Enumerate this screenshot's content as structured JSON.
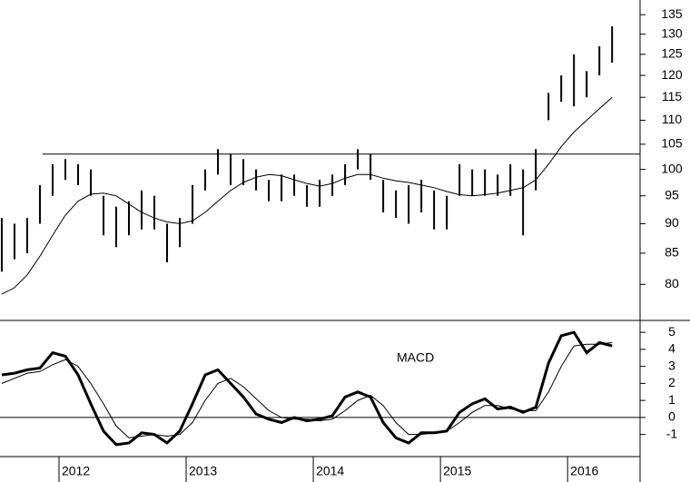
{
  "chart_data": [
    {
      "type": "hilo",
      "x": [
        2011.55,
        2011.65,
        2011.75,
        2011.85,
        2011.95,
        2012.05,
        2012.15,
        2012.25,
        2012.35,
        2012.45,
        2012.55,
        2012.65,
        2012.75,
        2012.85,
        2012.95,
        2013.05,
        2013.15,
        2013.25,
        2013.35,
        2013.45,
        2013.55,
        2013.65,
        2013.75,
        2013.85,
        2013.95,
        2014.05,
        2014.15,
        2014.25,
        2014.35,
        2014.45,
        2014.55,
        2014.65,
        2014.75,
        2014.85,
        2014.95,
        2015.05,
        2015.15,
        2015.25,
        2015.35,
        2015.45,
        2015.55,
        2015.65,
        2015.75,
        2015.85,
        2015.95,
        2016.05,
        2016.15,
        2016.25,
        2016.35
      ],
      "high": [
        91,
        90,
        91,
        97,
        101,
        102,
        101,
        100,
        95,
        93,
        94,
        96,
        95,
        90,
        91,
        97,
        100,
        104,
        103,
        102,
        100,
        98,
        99,
        99,
        97,
        98,
        99,
        101,
        104,
        103,
        98,
        96,
        97,
        98,
        96,
        95,
        101,
        100,
        100,
        99,
        101,
        100,
        104,
        116,
        120,
        125,
        121,
        127,
        132
      ],
      "low": [
        82,
        84,
        85,
        90,
        95,
        98,
        97,
        95,
        88,
        86,
        88,
        89,
        89,
        83.5,
        86,
        90,
        96,
        99,
        97,
        97,
        96,
        94,
        94,
        95,
        93,
        93,
        95,
        97,
        100,
        98,
        92,
        91,
        90,
        92,
        89,
        89,
        95,
        95,
        95,
        95,
        95,
        88,
        96,
        110,
        114,
        113,
        115,
        120,
        123
      ],
      "moving_average": [
        78.5,
        79.5,
        81.5,
        84.5,
        88,
        91.5,
        94,
        95.3,
        95.5,
        95,
        93.5,
        92,
        91,
        90.3,
        90,
        90.5,
        92,
        94,
        96,
        97.5,
        98.5,
        99,
        98.8,
        98,
        97.3,
        96.8,
        97.3,
        98.3,
        99,
        99,
        98.3,
        97.8,
        97.5,
        97,
        96.5,
        95.8,
        95.2,
        95,
        95.2,
        95.5,
        96,
        96.5,
        98,
        101,
        104.5,
        107.5,
        110,
        112.5,
        115
      ],
      "color": "#000000",
      "log_scale": true,
      "xlim": [
        2011.536,
        2016.57
      ],
      "ylim": [
        74.6,
        138.9
      ],
      "yticks": [
        80,
        85,
        90,
        95,
        100,
        105,
        110,
        115,
        120,
        125,
        130,
        135
      ],
      "hline": 103,
      "hline_start": 2011.87
    },
    {
      "type": "line",
      "annotation": "MACD",
      "x": [
        2011.55,
        2011.65,
        2011.75,
        2011.85,
        2011.95,
        2012.05,
        2012.15,
        2012.25,
        2012.35,
        2012.45,
        2012.55,
        2012.65,
        2012.75,
        2012.85,
        2012.95,
        2013.05,
        2013.15,
        2013.25,
        2013.35,
        2013.45,
        2013.55,
        2013.65,
        2013.75,
        2013.85,
        2013.95,
        2014.05,
        2014.15,
        2014.25,
        2014.35,
        2014.45,
        2014.55,
        2014.65,
        2014.75,
        2014.85,
        2014.95,
        2015.05,
        2015.15,
        2015.25,
        2015.35,
        2015.45,
        2015.55,
        2015.65,
        2015.75,
        2015.85,
        2015.95,
        2016.05,
        2016.15,
        2016.25,
        2016.35
      ],
      "macd": [
        2.5,
        2.6,
        2.8,
        2.9,
        3.8,
        3.6,
        2.5,
        0.8,
        -0.8,
        -1.6,
        -1.5,
        -0.9,
        -1.0,
        -1.5,
        -0.8,
        0.8,
        2.5,
        2.8,
        2.0,
        1.2,
        0.2,
        -0.1,
        -0.3,
        0,
        -0.2,
        -0.1,
        0.1,
        1.2,
        1.5,
        1.2,
        -0.3,
        -1.2,
        -1.5,
        -0.9,
        -0.9,
        -0.8,
        0.3,
        0.8,
        1.1,
        0.5,
        0.6,
        0.3,
        0.6,
        3.2,
        4.8,
        5.0,
        3.8,
        4.4,
        4.2
      ],
      "signal": [
        2.0,
        2.3,
        2.6,
        2.7,
        3.1,
        3.4,
        3.0,
        2.0,
        0.8,
        -0.5,
        -1.2,
        -1.1,
        -1.0,
        -1.1,
        -1.0,
        -0.3,
        1.0,
        2.0,
        2.3,
        1.8,
        1.1,
        0.4,
        0,
        -0.1,
        -0.1,
        -0.2,
        -0.1,
        0.4,
        1.0,
        1.3,
        0.7,
        -0.3,
        -1.0,
        -1.0,
        -0.9,
        -0.8,
        -0.3,
        0.3,
        0.7,
        0.7,
        0.5,
        0.4,
        0.4,
        1.5,
        3.0,
        4.2,
        4.3,
        4.3,
        4.4
      ],
      "color": "#000000",
      "xlim": [
        2011.536,
        2016.57
      ],
      "ylim": [
        -2.3,
        5.7
      ],
      "yticks": [
        -1,
        0,
        1,
        2,
        3,
        4,
        5
      ],
      "xticks": [
        2012,
        2013,
        2014,
        2015,
        2016
      ],
      "hline": 0
    }
  ]
}
